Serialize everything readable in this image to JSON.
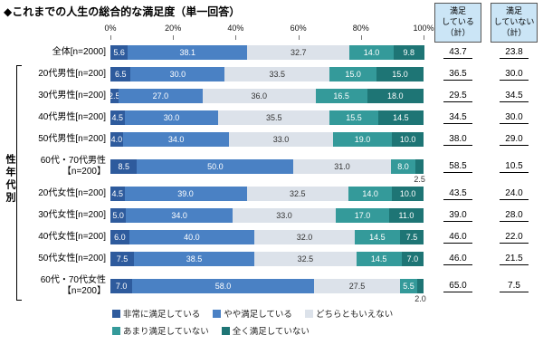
{
  "title": "◆これまでの人生の総合的な満足度（単一回答）",
  "summary_headers": [
    "満足\nしている\n（計）",
    "満足\nしていない\n（計）"
  ],
  "side_label": "性年代別",
  "axis_ticks": [
    "0%",
    "20%",
    "40%",
    "60%",
    "80%",
    "100%"
  ],
  "legend": [
    {
      "label": "非常に満足している",
      "color": "#2e5b9d"
    },
    {
      "label": "やや満足している",
      "color": "#4a81c4"
    },
    {
      "label": "どちらともいえない",
      "color": "#dce2ea"
    },
    {
      "label": "あまり満足していない",
      "color": "#349a9a"
    },
    {
      "label": "全く満足していない",
      "color": "#1e7575"
    }
  ],
  "chart_data": {
    "type": "bar",
    "stacked": true,
    "orientation": "horizontal",
    "title": "これまでの人生の総合的な満足度（単一回答）",
    "x_axis": {
      "min": 0,
      "max": 100,
      "unit": "%",
      "ticks": [
        0,
        20,
        40,
        60,
        80,
        100
      ]
    },
    "series_names": [
      "非常に満足している",
      "やや満足している",
      "どちらともいえない",
      "あまり満足していない",
      "全く満足していない"
    ],
    "rows": [
      {
        "label": "全体[n=2000]",
        "values": [
          5.6,
          38.1,
          32.7,
          14.0,
          9.8
        ],
        "satisfied_total": 43.7,
        "dissatisfied_total": 23.8
      },
      {
        "label": "20代男性[n=200]",
        "values": [
          6.5,
          30.0,
          33.5,
          15.0,
          15.0
        ],
        "satisfied_total": 36.5,
        "dissatisfied_total": 30.0
      },
      {
        "label": "30代男性[n=200]",
        "values": [
          2.5,
          27.0,
          36.0,
          16.5,
          18.0
        ],
        "satisfied_total": 29.5,
        "dissatisfied_total": 34.5
      },
      {
        "label": "40代男性[n=200]",
        "values": [
          4.5,
          30.0,
          35.5,
          15.5,
          14.5
        ],
        "satisfied_total": 34.5,
        "dissatisfied_total": 30.0
      },
      {
        "label": "50代男性[n=200]",
        "values": [
          4.0,
          34.0,
          33.0,
          19.0,
          10.0
        ],
        "satisfied_total": 38.0,
        "dissatisfied_total": 29.0
      },
      {
        "label": "60代・70代男性",
        "label2": "【n=200】",
        "values": [
          8.5,
          50.0,
          31.0,
          8.0,
          2.5
        ],
        "satisfied_total": 58.5,
        "dissatisfied_total": 10.5
      },
      {
        "label": "20代女性[n=200]",
        "values": [
          4.5,
          39.0,
          32.5,
          14.0,
          10.0
        ],
        "satisfied_total": 43.5,
        "dissatisfied_total": 24.0
      },
      {
        "label": "30代女性[n=200]",
        "values": [
          5.0,
          34.0,
          33.0,
          17.0,
          11.0
        ],
        "satisfied_total": 39.0,
        "dissatisfied_total": 28.0
      },
      {
        "label": "40代女性[n=200]",
        "values": [
          6.0,
          40.0,
          32.0,
          14.5,
          7.5
        ],
        "satisfied_total": 46.0,
        "dissatisfied_total": 22.0
      },
      {
        "label": "50代女性[n=200]",
        "values": [
          7.5,
          38.5,
          32.5,
          14.5,
          7.0
        ],
        "satisfied_total": 46.0,
        "dissatisfied_total": 21.5
      },
      {
        "label": "60代・70代女性",
        "label2": "【n=200】",
        "values": [
          7.0,
          58.0,
          27.5,
          5.5,
          2.0
        ],
        "satisfied_total": 65.0,
        "dissatisfied_total": 7.5
      }
    ]
  }
}
